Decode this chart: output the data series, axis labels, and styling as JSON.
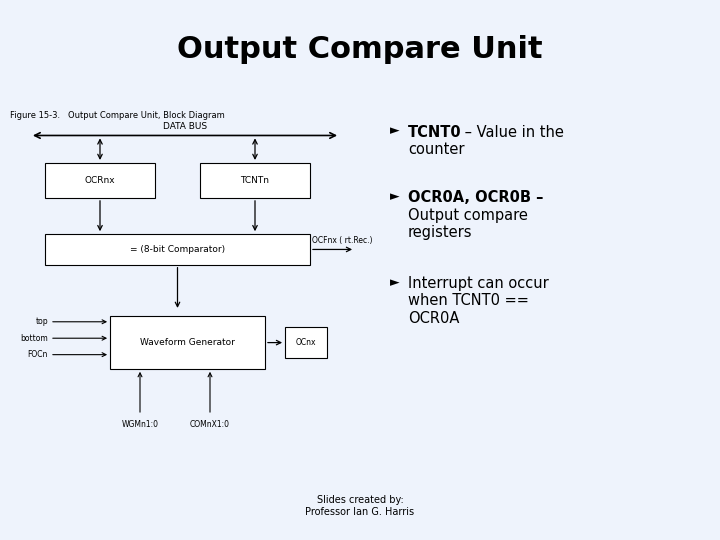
{
  "title": "Output Compare Unit",
  "title_fontsize": 22,
  "title_fontweight": "bold",
  "title_bg_color": "#cce0ff",
  "main_bg_color": "#eef3fc",
  "footer_bg_color": "#cce0ff",
  "footer_text": "Slides created by:\nProfessor Ian G. Harris",
  "figure_caption": "Figure 15-3.   Output Compare Unit, Block Diagram",
  "box_color": "#ffffff",
  "box_edge_color": "#000000",
  "line_color": "#000000",
  "font_color": "#000000",
  "title_bar_height": 0.185,
  "footer_bar_height": 0.115,
  "sep_color": "#8899bb",
  "bullet_arrow": "►",
  "bullet1_bold": "TCNT0",
  "bullet1_rest_line1": " – Value in the",
  "bullet1_rest_line2": "counter",
  "bullet2_bold": "OCR0A, OCR0B –",
  "bullet2_rest_line1": "Output compare",
  "bullet2_rest_line2": "registers",
  "bullet3_line1": "Interrupt can occur",
  "bullet3_line2": "when TCNT0 ==",
  "bullet3_line3": "OCR0A",
  "databus_label": "DATA BUS",
  "ocrnx_label": "OCRnx",
  "tcntn_label": "TCNTn",
  "comp_label": "= (8-bit Comparator)",
  "ocfnx_label": "OCFnx ( rt.Rec.)",
  "wg_label": "Waveform Generator",
  "ocnx_label": "OCnx",
  "wgm_label": "WGMn1:0",
  "com_label": "COMnX1:0",
  "input_labels": [
    "top",
    "bottom",
    "FOCn"
  ]
}
